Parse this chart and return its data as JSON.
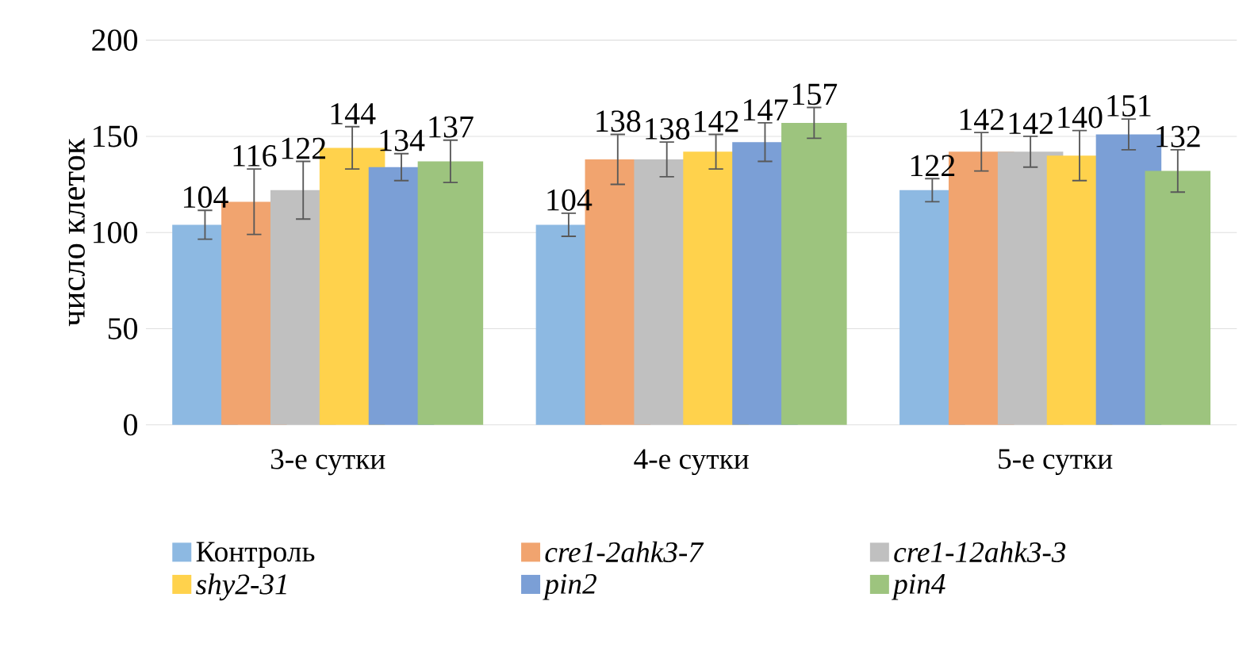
{
  "chart_data": {
    "type": "bar",
    "ylabel": "число клеток",
    "categories": [
      "3-е сутки",
      "4-е сутки",
      "5-е сутки"
    ],
    "series": [
      {
        "name": "Контроль",
        "color": "#8db9e2",
        "values": [
          104,
          104,
          122
        ],
        "errors": [
          7.5,
          6,
          6
        ]
      },
      {
        "name": "cre1-2ahk3-7",
        "color": "#f1a46f",
        "values": [
          116,
          138,
          142
        ],
        "errors": [
          17,
          13,
          10
        ]
      },
      {
        "name": "cre1-12ahk3-3",
        "color": "#c0c0c0",
        "values": [
          122,
          138,
          142
        ],
        "errors": [
          15,
          9,
          8
        ]
      },
      {
        "name": "shy2-31",
        "color": "#ffd24c",
        "values": [
          144,
          142,
          140
        ],
        "errors": [
          11,
          9,
          13
        ]
      },
      {
        "name": "pin2",
        "color": "#7b9fd6",
        "values": [
          134,
          147,
          151
        ],
        "errors": [
          7,
          10,
          8
        ]
      },
      {
        "name": "pin4",
        "color": "#9dc47e",
        "values": [
          137,
          157,
          132
        ],
        "errors": [
          11,
          8,
          11
        ]
      }
    ],
    "ylim": [
      0,
      200
    ],
    "yticks": [
      0,
      50,
      100,
      150,
      200
    ],
    "grid": "y",
    "legend": "bottom",
    "data_labels": true
  }
}
